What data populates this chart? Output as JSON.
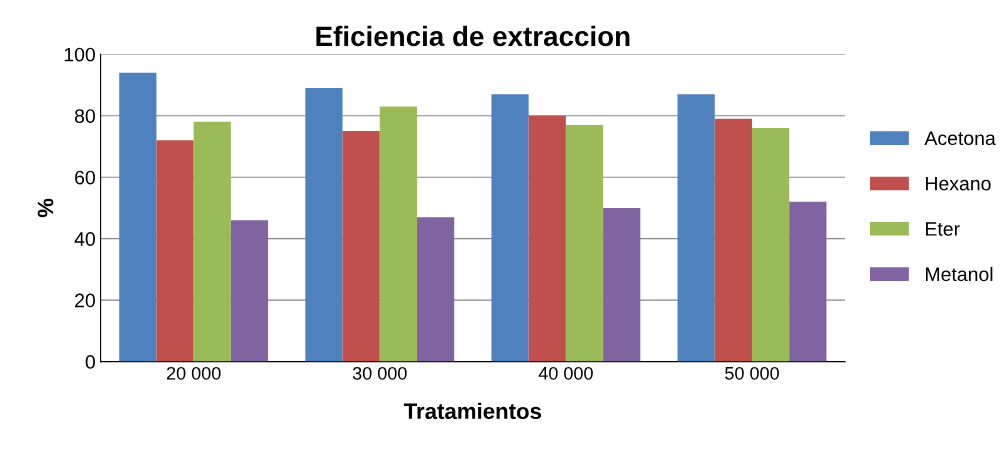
{
  "chart_data": {
    "type": "bar",
    "title": "Eficiencia de extraccion",
    "xlabel": "Tratamientos",
    "ylabel": "%",
    "categories": [
      "20 000",
      "30 000",
      "40 000",
      "50 000"
    ],
    "series": [
      {
        "name": "Acetona",
        "color": "#4f81bd",
        "values": [
          94,
          89,
          87,
          87
        ]
      },
      {
        "name": "Hexano",
        "color": "#c0504d",
        "values": [
          72,
          75,
          80,
          79
        ]
      },
      {
        "name": "Eter",
        "color": "#9bbb59",
        "values": [
          78,
          83,
          77,
          76
        ]
      },
      {
        "name": "Metanol",
        "color": "#8064a2",
        "values": [
          46,
          47,
          50,
          52
        ]
      }
    ],
    "ylim": [
      0,
      100
    ],
    "yticks": [
      0,
      20,
      40,
      60,
      80,
      100
    ],
    "grid": "y",
    "legend": "right"
  }
}
